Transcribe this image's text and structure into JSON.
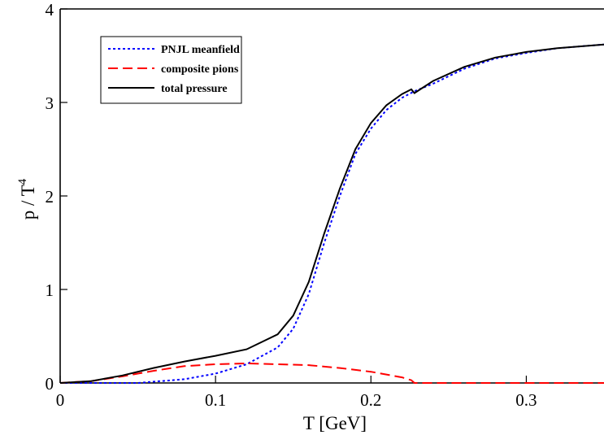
{
  "chart_data": {
    "type": "line",
    "xlabel": "T [GeV]",
    "ylabel": "p / T",
    "ylabel_superscript": "4",
    "xlim": [
      0,
      0.35
    ],
    "ylim": [
      0,
      4
    ],
    "x_ticks": [
      "0",
      "0.1",
      "0.2",
      "0.3"
    ],
    "y_ticks": [
      "0",
      "1",
      "2",
      "3",
      "4"
    ],
    "grid": false,
    "legend_position": "top-left",
    "series": [
      {
        "name": "PNJL meanfield",
        "color": "#0000ff",
        "style": "dotted",
        "x": [
          0,
          0.05,
          0.08,
          0.1,
          0.12,
          0.14,
          0.15,
          0.16,
          0.17,
          0.18,
          0.19,
          0.2,
          0.21,
          0.22,
          0.228,
          0.24,
          0.26,
          0.28,
          0.3,
          0.32,
          0.35
        ],
        "y": [
          0,
          0.0,
          0.04,
          0.1,
          0.2,
          0.38,
          0.58,
          0.95,
          1.5,
          2.0,
          2.45,
          2.72,
          2.92,
          3.05,
          3.12,
          3.2,
          3.36,
          3.47,
          3.53,
          3.58,
          3.62
        ]
      },
      {
        "name": "composite pions",
        "color": "#ff0000",
        "style": "dashed",
        "x": [
          0,
          0.02,
          0.04,
          0.06,
          0.08,
          0.1,
          0.12,
          0.14,
          0.16,
          0.18,
          0.2,
          0.22,
          0.226,
          0.228,
          0.26,
          0.3,
          0.35
        ],
        "y": [
          0,
          0.02,
          0.07,
          0.13,
          0.18,
          0.2,
          0.21,
          0.2,
          0.19,
          0.16,
          0.12,
          0.06,
          0.03,
          0.0,
          0.0,
          0.0,
          0.0
        ]
      },
      {
        "name": "total pressure",
        "color": "#000000",
        "style": "solid",
        "x": [
          0,
          0.02,
          0.04,
          0.06,
          0.08,
          0.1,
          0.12,
          0.14,
          0.15,
          0.16,
          0.17,
          0.18,
          0.19,
          0.2,
          0.21,
          0.22,
          0.226,
          0.228,
          0.24,
          0.26,
          0.28,
          0.3,
          0.32,
          0.35
        ],
        "y": [
          0,
          0.02,
          0.08,
          0.16,
          0.23,
          0.29,
          0.36,
          0.52,
          0.72,
          1.08,
          1.6,
          2.08,
          2.5,
          2.78,
          2.97,
          3.09,
          3.14,
          3.1,
          3.23,
          3.38,
          3.48,
          3.54,
          3.58,
          3.62
        ]
      }
    ]
  }
}
